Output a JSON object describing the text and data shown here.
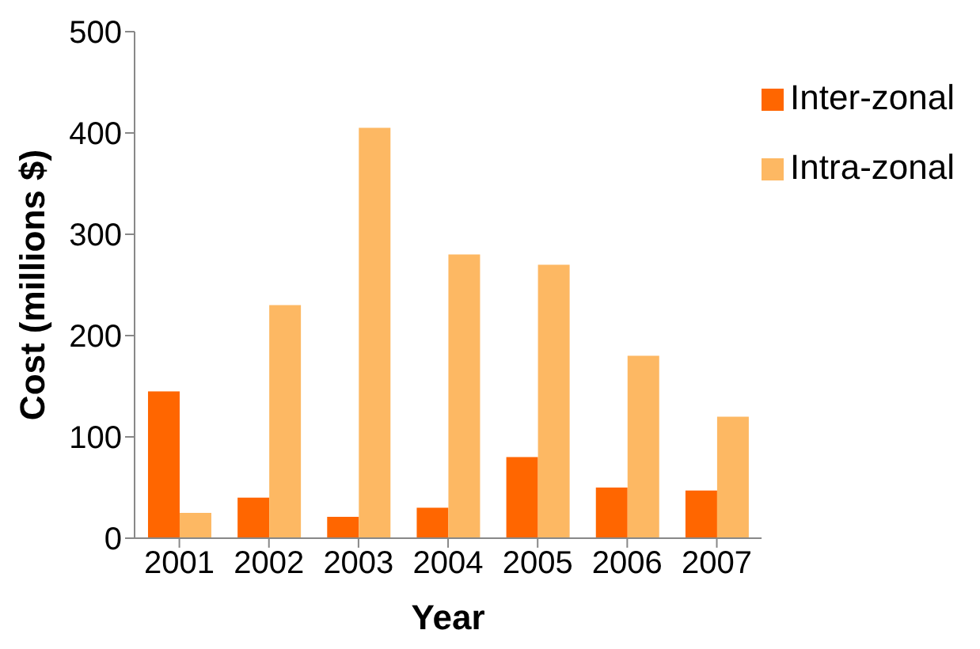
{
  "chart_data": {
    "type": "bar",
    "xlabel": "Year",
    "ylabel": "Cost (millions $)",
    "categories": [
      "2001",
      "2002",
      "2003",
      "2004",
      "2005",
      "2006",
      "2007"
    ],
    "series": [
      {
        "name": "Inter-zonal",
        "color": "#ff6600",
        "values": [
          145,
          40,
          21,
          30,
          80,
          50,
          47
        ]
      },
      {
        "name": "Intra-zonal",
        "color": "#fdb863",
        "values": [
          25,
          230,
          405,
          280,
          270,
          180,
          120
        ]
      }
    ],
    "ylim": [
      0,
      500
    ],
    "yticks": [
      0,
      100,
      200,
      300,
      400,
      500
    ],
    "grid": false,
    "legend": "top right"
  }
}
